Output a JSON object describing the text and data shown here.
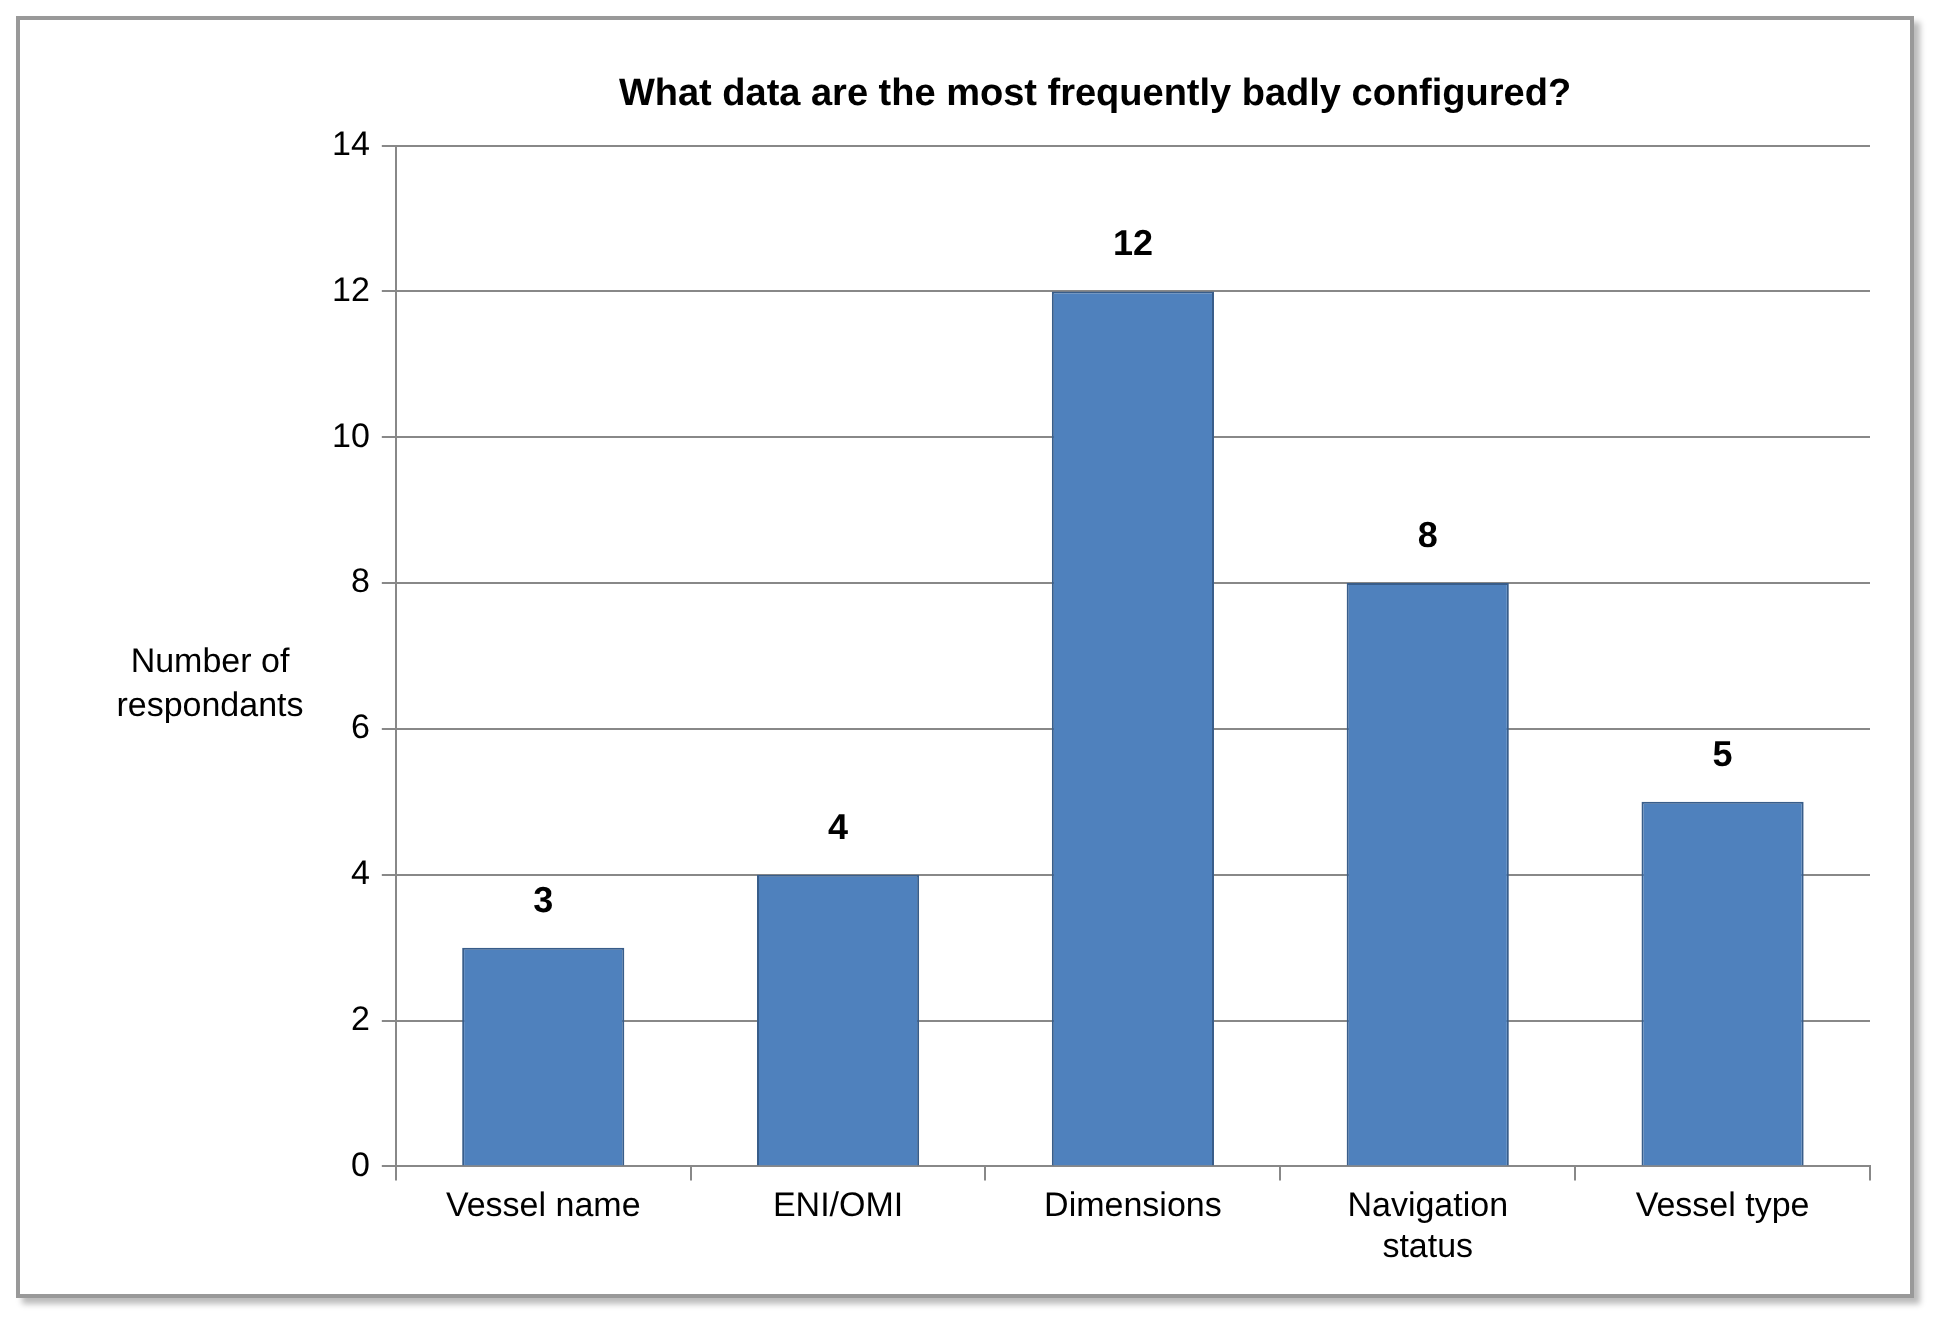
{
  "chart_data": {
    "type": "bar",
    "title": "What data are the most frequently badly configured?",
    "ylabel": "Number of respondants",
    "categories": [
      "Vessel name",
      "ENI/OMI",
      "Dimensions",
      "Navigation status",
      "Vessel type"
    ],
    "values": [
      3,
      4,
      12,
      8,
      5
    ],
    "color": "#4f81bd",
    "ylim": [
      0,
      14
    ],
    "yticks": [
      0,
      2,
      4,
      6,
      8,
      10,
      12,
      14
    ],
    "grid": "y",
    "data_labels": true,
    "legend": false
  }
}
